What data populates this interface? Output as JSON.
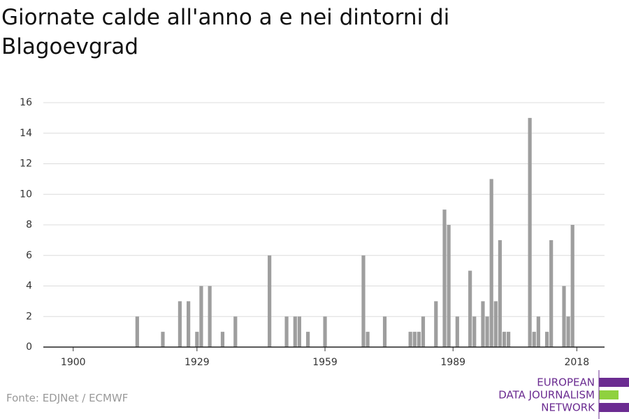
{
  "chart_data": {
    "type": "bar",
    "title": "Giornate calde all'anno a e nei dintorni di Blagoevgrad",
    "source": "Fonte: EDJNet / ECMWF",
    "logo": [
      "EUROPEAN",
      "DATA JOURNALISM",
      "NETWORK"
    ],
    "x": [
      1915,
      1921,
      1925,
      1927,
      1929,
      1930,
      1932,
      1935,
      1938,
      1946,
      1950,
      1952,
      1953,
      1955,
      1959,
      1968,
      1969,
      1973,
      1979,
      1980,
      1981,
      1982,
      1985,
      1987,
      1988,
      1990,
      1993,
      1994,
      1996,
      1997,
      1998,
      1999,
      2000,
      2001,
      2002,
      2007,
      2008,
      2009,
      2011,
      2012,
      2015,
      2016,
      2017
    ],
    "values": [
      2,
      1,
      3,
      3,
      1,
      4,
      4,
      1,
      2,
      6,
      2,
      2,
      2,
      1,
      2,
      6,
      1,
      2,
      1,
      1,
      1,
      2,
      3,
      9,
      8,
      2,
      5,
      2,
      3,
      2,
      11,
      3,
      7,
      1,
      1,
      15,
      1,
      2,
      1,
      7,
      4,
      2,
      8
    ],
    "color": "#9e9e9e",
    "xlim": [
      1893,
      2024.5
    ],
    "xticks": [
      1900,
      1929,
      1959,
      1989,
      2018
    ],
    "ylim": [
      0,
      16
    ],
    "yticks": [
      0,
      2,
      4,
      6,
      8,
      10,
      12,
      14,
      16
    ],
    "grid": true
  }
}
